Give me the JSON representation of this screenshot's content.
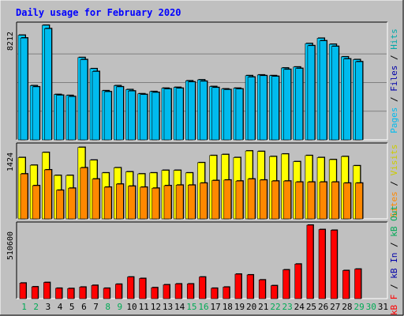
{
  "chart_data": {
    "type": "bar",
    "title": "Daily usage for February 2020",
    "colors": {
      "background": "#c0c0c0",
      "plot_background": "#c0c0c0",
      "hits": "#00ccff",
      "files": "#00bbee",
      "pages": "#0088cc",
      "visits": "#ffff00",
      "sites": "#ff8800",
      "kb_f": "#ff0000",
      "weekday_label": "#000000",
      "weekend_label": "#00aa55",
      "title": "#0000ff",
      "hits_label": "#00aaaa",
      "files_label": "#0000aa",
      "pages_label": "#00bbee",
      "visits_label": "#cccc00",
      "sites_label": "#ff8800",
      "kbf_label": "#ff0000",
      "kbin_label": "#0000aa",
      "kbout_label": "#00aa55"
    },
    "categories": [
      "1",
      "2",
      "3",
      "4",
      "5",
      "6",
      "7",
      "8",
      "9",
      "10",
      "11",
      "12",
      "13",
      "14",
      "15",
      "16",
      "17",
      "18",
      "19",
      "20",
      "21",
      "22",
      "23",
      "24",
      "25",
      "26",
      "27",
      "28",
      "29",
      "30",
      "31"
    ],
    "weekend_days": [
      "1",
      "2",
      "8",
      "9",
      "15",
      "16",
      "22",
      "23",
      "29",
      "30"
    ],
    "panels": [
      {
        "name": "hits-files-pages",
        "max_label": "8212",
        "ymax": 8212,
        "ylabel_parts": [
          "Pages",
          "/",
          "Files",
          "/",
          "Hits"
        ],
        "series": [
          {
            "name": "Hits",
            "values": [
              7500,
              3880,
              8212,
              3250,
              3180,
              5900,
              5100,
              3520,
              3880,
              3600,
              3300,
              3460,
              3700,
              3760,
              4230,
              4300,
              3820,
              3650,
              3700,
              4600,
              4650,
              4600,
              5150,
              5220,
              6900,
              7280,
              6850,
              5950,
              5750,
              0,
              0
            ]
          },
          {
            "name": "Files",
            "values": [
              7300,
              3800,
              7970,
              3200,
              3100,
              5750,
              4900,
              3450,
              3800,
              3500,
              3250,
              3400,
              3650,
              3700,
              4150,
              4200,
              3750,
              3600,
              3650,
              4500,
              4600,
              4550,
              5050,
              5120,
              6750,
              7100,
              6700,
              5800,
              5600,
              0,
              0
            ]
          },
          {
            "name": "Pages",
            "values": [
              0,
              0,
              0,
              0,
              0,
              0,
              0,
              0,
              0,
              0,
              0,
              0,
              0,
              0,
              0,
              0,
              0,
              0,
              0,
              0,
              0,
              0,
              0,
              0,
              0,
              0,
              0,
              0,
              0,
              0,
              0
            ]
          }
        ]
      },
      {
        "name": "visits-sites",
        "max_label": "1424",
        "ymax": 1424,
        "ylabel_parts": [
          "Sites",
          "/",
          "Visits"
        ],
        "series": [
          {
            "name": "Visits",
            "values": [
              1200,
              1050,
              1300,
              850,
              850,
              1400,
              1150,
              900,
              1000,
              920,
              880,
              900,
              950,
              950,
              900,
              1100,
              1240,
              1260,
              1200,
              1330,
              1320,
              1220,
              1270,
              1120,
              1240,
              1200,
              1160,
              1220,
              1040,
              0,
              0
            ]
          },
          {
            "name": "Sites",
            "values": [
              880,
              650,
              960,
              560,
              600,
              1000,
              780,
              620,
              680,
              640,
              620,
              600,
              650,
              660,
              660,
              700,
              750,
              760,
              740,
              780,
              760,
              740,
              740,
              720,
              720,
              720,
              720,
              700,
              700,
              0,
              0
            ]
          }
        ]
      },
      {
        "name": "kb",
        "max_label": "510600",
        "ymax": 510600,
        "ylabel_parts": [
          "kB F",
          "/",
          "kB In",
          "/",
          "kB Out"
        ],
        "series": [
          {
            "name": "kB F",
            "values": [
              108000,
              82000,
              112000,
              72000,
              70000,
              80000,
              92000,
              72000,
              100000,
              150000,
              140000,
              76000,
              96000,
              102000,
              102000,
              150000,
              72000,
              80000,
              170000,
              165000,
              130000,
              90000,
              200000,
              240000,
              510600,
              480000,
              475000,
              195000,
              205000,
              0,
              0
            ]
          }
        ]
      }
    ]
  }
}
